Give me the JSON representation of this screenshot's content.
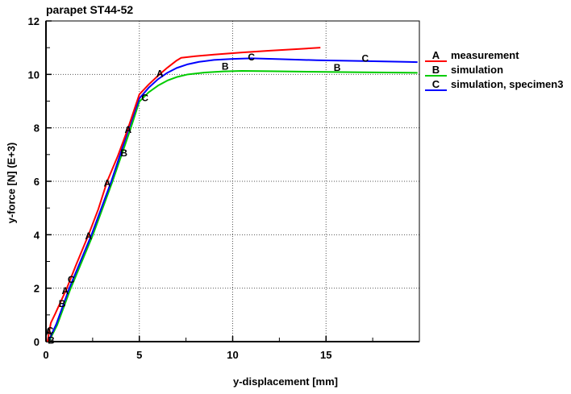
{
  "window": {
    "background": "#ffffff"
  },
  "chart_data": {
    "type": "line",
    "title": "parapet ST44-52",
    "xlabel": "y-displacement [mm]",
    "ylabel": "y-force [N] (E+3)",
    "xlim": [
      0,
      20
    ],
    "ylim": [
      0,
      12
    ],
    "xticks": [
      0,
      5,
      10,
      15
    ],
    "yticks": [
      0,
      2,
      4,
      6,
      8,
      10,
      12
    ],
    "x_minor_ticks": [
      2.5,
      7.5,
      12.5,
      17.5
    ],
    "y_minor_ticks": [
      1,
      3,
      5,
      7,
      9,
      11
    ],
    "grid": "dotted lines at major ticks",
    "grid_color": "#555555",
    "axis_color": "#000000",
    "legend_position": "right of plot, outside",
    "series": [
      {
        "letter": "A",
        "name": "measurement",
        "color": "#ff0000",
        "points": [
          [
            0.08,
            0.0
          ],
          [
            0.26,
            0.7
          ],
          [
            0.5,
            1.05
          ],
          [
            1.12,
            2.0
          ],
          [
            1.6,
            2.85
          ],
          [
            2.28,
            4.0
          ],
          [
            2.8,
            4.95
          ],
          [
            3.28,
            6.0
          ],
          [
            3.85,
            6.95
          ],
          [
            4.38,
            7.95
          ],
          [
            5.0,
            9.25
          ],
          [
            5.5,
            9.62
          ],
          [
            6.0,
            9.95
          ],
          [
            6.5,
            10.25
          ],
          [
            7.0,
            10.52
          ],
          [
            7.24,
            10.62
          ],
          [
            8.0,
            10.68
          ],
          [
            9.0,
            10.74
          ],
          [
            10.5,
            10.82
          ],
          [
            12.0,
            10.89
          ],
          [
            13.5,
            10.95
          ],
          [
            14.7,
            11.0
          ]
        ],
        "letter_markers": [
          [
            0.15,
            0.35
          ],
          [
            1.03,
            1.9
          ],
          [
            2.28,
            3.95
          ],
          [
            3.28,
            5.93
          ],
          [
            4.4,
            7.93
          ],
          [
            6.1,
            10.03
          ]
        ]
      },
      {
        "letter": "B",
        "name": "simulation",
        "color": "#00cc00",
        "points": [
          [
            0.15,
            0.0
          ],
          [
            0.6,
            0.62
          ],
          [
            1.3,
            1.95
          ],
          [
            2.5,
            3.97
          ],
          [
            3.55,
            5.97
          ],
          [
            4.5,
            7.9
          ],
          [
            5.0,
            8.98
          ],
          [
            5.5,
            9.33
          ],
          [
            6.0,
            9.58
          ],
          [
            6.5,
            9.77
          ],
          [
            7.0,
            9.9
          ],
          [
            7.6,
            10.0
          ],
          [
            8.5,
            10.07
          ],
          [
            9.5,
            10.11
          ],
          [
            10.5,
            10.13
          ],
          [
            12.0,
            10.12
          ],
          [
            14.0,
            10.1
          ],
          [
            16.5,
            10.08
          ],
          [
            19.9,
            10.06
          ]
        ],
        "letter_markers": [
          [
            0.28,
            0.05
          ],
          [
            0.87,
            1.42
          ],
          [
            4.18,
            7.05
          ],
          [
            9.6,
            10.3
          ],
          [
            15.6,
            10.25
          ]
        ]
      },
      {
        "letter": "C",
        "name": "simulation, specimen3",
        "color": "#0000ff",
        "points": [
          [
            0.12,
            0.0
          ],
          [
            0.55,
            0.65
          ],
          [
            1.25,
            2.0
          ],
          [
            2.44,
            4.0
          ],
          [
            3.5,
            6.0
          ],
          [
            4.45,
            8.0
          ],
          [
            5.0,
            9.1
          ],
          [
            5.5,
            9.5
          ],
          [
            6.0,
            9.82
          ],
          [
            6.5,
            10.06
          ],
          [
            7.0,
            10.24
          ],
          [
            7.6,
            10.38
          ],
          [
            8.2,
            10.47
          ],
          [
            9.0,
            10.54
          ],
          [
            10.0,
            10.58
          ],
          [
            11.0,
            10.6
          ],
          [
            12.5,
            10.57
          ],
          [
            14.5,
            10.53
          ],
          [
            17.0,
            10.5
          ],
          [
            19.9,
            10.46
          ]
        ],
        "letter_markers": [
          [
            0.22,
            0.4
          ],
          [
            1.35,
            2.32
          ],
          [
            5.3,
            9.12
          ],
          [
            11.0,
            10.64
          ],
          [
            17.1,
            10.6
          ]
        ]
      }
    ]
  }
}
